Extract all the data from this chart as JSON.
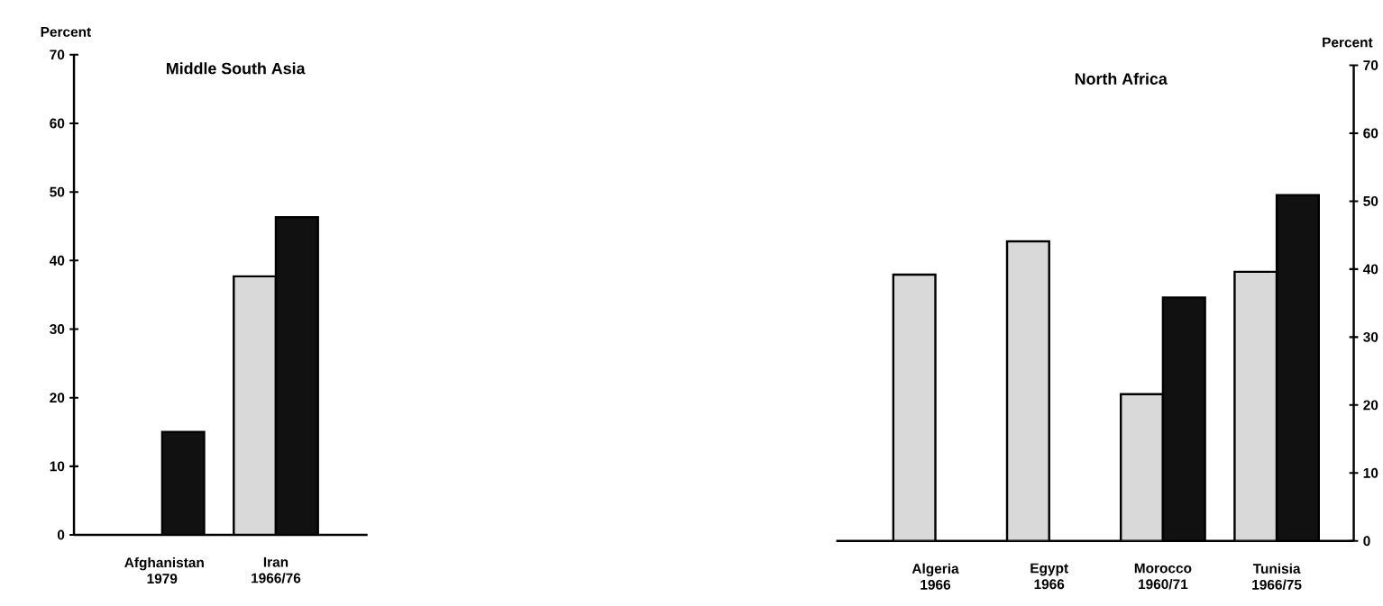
{
  "chart_data": [
    {
      "type": "bar",
      "title": "Middle South Asia",
      "ylabel": "Percent",
      "categories": [
        "Afghanistan 1979",
        "Iran 1966/76"
      ],
      "series": [
        {
          "color": "#d9d9d9",
          "values": [
            null,
            37.7
          ]
        },
        {
          "color": "#111111",
          "values": [
            15,
            46.3
          ]
        }
      ],
      "ylim": [
        0,
        70
      ],
      "yticks": [
        0,
        10,
        20,
        30,
        40,
        50,
        60,
        70
      ]
    },
    {
      "type": "bar",
      "title": "North Africa",
      "ylabel": "Percent",
      "categories": [
        "Algeria 1966",
        "Egypt 1966",
        "Morocco 1960/71",
        "Tunisia 1966/75"
      ],
      "series": [
        {
          "color": "#d9d9d9",
          "values": [
            39.2,
            44.1,
            21.6,
            39.6
          ]
        },
        {
          "color": "#111111",
          "values": [
            null,
            null,
            35.8,
            50.9
          ]
        }
      ],
      "ylim": [
        0,
        70
      ],
      "yticks": [
        0,
        10,
        20,
        30,
        40,
        50,
        60,
        70
      ]
    }
  ]
}
